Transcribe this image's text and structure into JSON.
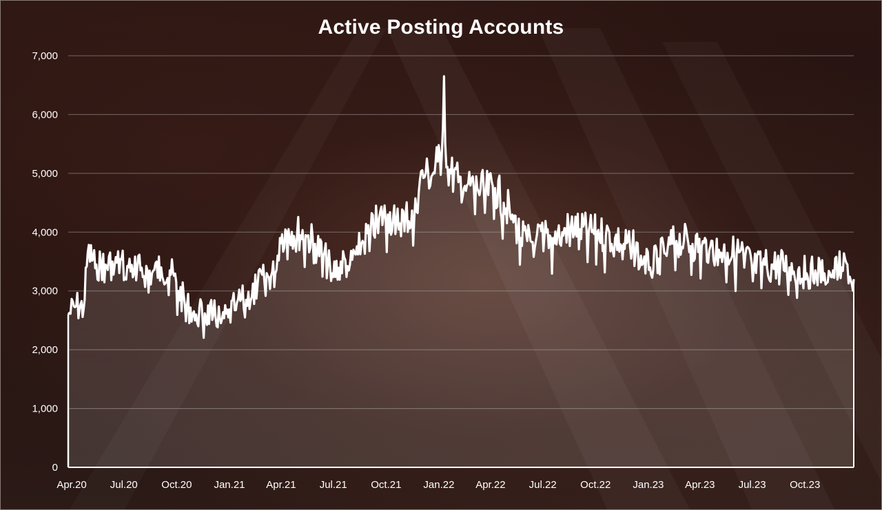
{
  "chart_data": {
    "type": "area",
    "title": "Active Posting Accounts",
    "xlabel": "",
    "ylabel": "",
    "ylim": [
      0,
      7000
    ],
    "yticks": [
      0,
      1000,
      2000,
      3000,
      4000,
      5000,
      6000,
      7000
    ],
    "ytick_labels": [
      "0",
      "1,000",
      "2,000",
      "3,000",
      "4,000",
      "5,000",
      "6,000",
      "7,000"
    ],
    "xlim": [
      "2020-04-01",
      "2023-12-31"
    ],
    "x_tick_labels": [
      {
        "label": "Apr.20",
        "date": "2020-04-01"
      },
      {
        "label": "Jul.20",
        "date": "2020-07-01"
      },
      {
        "label": "Oct.20",
        "date": "2020-10-01"
      },
      {
        "label": "Jan.21",
        "date": "2021-01-01"
      },
      {
        "label": "Apr.21",
        "date": "2021-04-01"
      },
      {
        "label": "Jul.21",
        "date": "2021-07-01"
      },
      {
        "label": "Oct.21",
        "date": "2021-10-01"
      },
      {
        "label": "Jan.22",
        "date": "2022-01-01"
      },
      {
        "label": "Apr.22",
        "date": "2022-04-01"
      },
      {
        "label": "Jul.22",
        "date": "2022-07-01"
      },
      {
        "label": "Oct.22",
        "date": "2022-10-01"
      },
      {
        "label": "Jan.23",
        "date": "2023-01-01"
      },
      {
        "label": "Apr.23",
        "date": "2023-04-01"
      },
      {
        "label": "Jul.23",
        "date": "2023-07-01"
      },
      {
        "label": "Oct.23",
        "date": "2023-10-01"
      }
    ],
    "grid": true,
    "legend": "none",
    "colors": {
      "line": "#ffffff",
      "area": "#ffffff",
      "grid": "#8c8380",
      "text": "#ffffff"
    },
    "series": [
      {
        "x": [
          "2020-04-01",
          "2020-04-15",
          "2020-04-28",
          "2020-05-05",
          "2020-05-20",
          "2020-06-05",
          "2020-06-25",
          "2020-07-15",
          "2020-08-05",
          "2020-08-25",
          "2020-09-10",
          "2020-09-25",
          "2020-10-10",
          "2020-10-25",
          "2020-11-10",
          "2020-11-25",
          "2020-12-10",
          "2020-12-25",
          "2021-01-05",
          "2021-01-20",
          "2021-02-05",
          "2021-02-25",
          "2021-03-15",
          "2021-03-28",
          "2021-04-05",
          "2021-04-20",
          "2021-05-05",
          "2021-05-20",
          "2021-06-05",
          "2021-06-20",
          "2021-07-05",
          "2021-07-20",
          "2021-08-05",
          "2021-08-25",
          "2021-09-10",
          "2021-09-25",
          "2021-10-10",
          "2021-10-25",
          "2021-11-10",
          "2021-11-25",
          "2021-12-05",
          "2021-12-15",
          "2021-12-25",
          "2022-01-05",
          "2022-01-12",
          "2022-01-16",
          "2022-01-20",
          "2022-01-28",
          "2022-02-10",
          "2022-02-25",
          "2022-03-15",
          "2022-03-30",
          "2022-04-15",
          "2022-04-30",
          "2022-05-15",
          "2022-05-30",
          "2022-06-10",
          "2022-06-25",
          "2022-07-10",
          "2022-07-25",
          "2022-08-10",
          "2022-08-25",
          "2022-09-10",
          "2022-09-25",
          "2022-10-10",
          "2022-10-25",
          "2022-11-10",
          "2022-11-25",
          "2022-12-10",
          "2022-12-25",
          "2023-01-10",
          "2023-01-25",
          "2023-02-10",
          "2023-02-25",
          "2023-03-10",
          "2023-03-25",
          "2023-04-10",
          "2023-04-25",
          "2023-05-10",
          "2023-05-25",
          "2023-06-10",
          "2023-06-25",
          "2023-07-10",
          "2023-07-25",
          "2023-08-10",
          "2023-08-25",
          "2023-09-10",
          "2023-09-25",
          "2023-10-10",
          "2023-10-25",
          "2023-11-10",
          "2023-11-25",
          "2023-12-10",
          "2023-12-20",
          "2023-12-28",
          "2023-12-31"
        ],
        "y": [
          2600,
          2750,
          2700,
          3650,
          3450,
          3450,
          3480,
          3400,
          3350,
          3300,
          3400,
          3350,
          3000,
          2750,
          2600,
          2620,
          2600,
          2520,
          2550,
          2800,
          2850,
          3100,
          3250,
          3300,
          3900,
          4050,
          4000,
          3950,
          3800,
          3600,
          3300,
          3500,
          3450,
          3800,
          4000,
          4250,
          4300,
          4150,
          4300,
          4200,
          4900,
          5000,
          4950,
          5200,
          5300,
          6650,
          5100,
          5000,
          4850,
          4800,
          4750,
          4700,
          4750,
          4500,
          4300,
          3900,
          3850,
          3850,
          3950,
          3900,
          4000,
          4100,
          4050,
          4000,
          4000,
          3950,
          3900,
          3800,
          3750,
          3600,
          3400,
          3550,
          3750,
          3850,
          3850,
          3800,
          3750,
          3750,
          3700,
          3650,
          3650,
          3600,
          3400,
          3450,
          3450,
          3450,
          3400,
          3350,
          3300,
          3350,
          3300,
          3350,
          3400,
          3450,
          3100,
          3200
        ]
      }
    ]
  }
}
